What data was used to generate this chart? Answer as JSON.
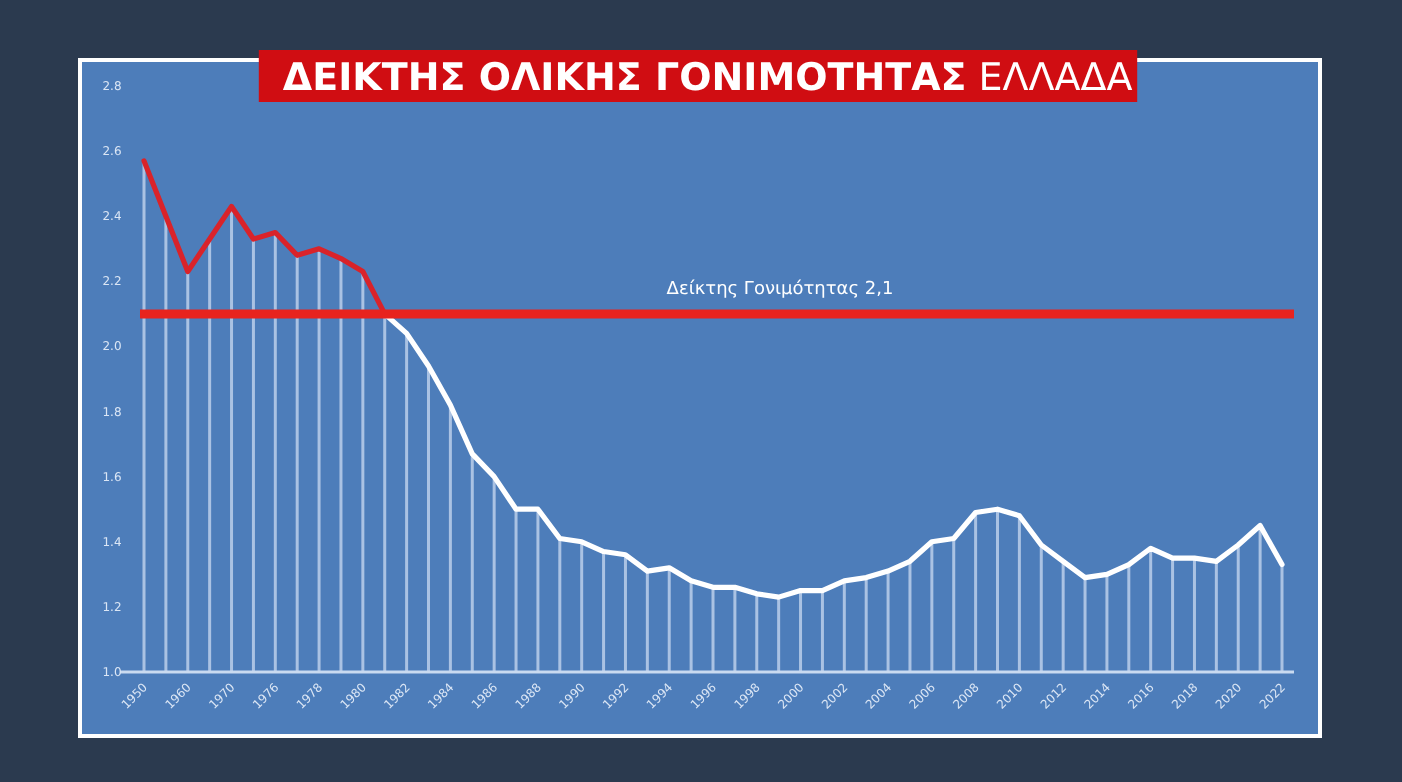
{
  "chart_data": {
    "type": "line",
    "title": "ΔΕΙΚΤΗΣ ΟΛΙΚΗΣ ΓΟΝΙΜΟΤΗΤΑΣ",
    "subtitle": "ΕΛΛΑΔΑ",
    "categories": [
      "1950",
      null,
      "1960",
      null,
      "1970",
      null,
      "1976",
      null,
      "1978",
      null,
      "1980",
      null,
      "1982",
      null,
      "1984",
      null,
      "1986",
      null,
      "1988",
      null,
      "1990",
      null,
      "1992",
      null,
      "1994",
      null,
      "1996",
      null,
      "1998",
      null,
      "2000",
      null,
      "2002",
      null,
      "2004",
      null,
      "2006",
      null,
      "2008",
      null,
      "2010",
      null,
      "2012",
      null,
      "2014",
      null,
      "2016",
      null,
      "2018",
      null,
      "2020",
      null,
      "2022"
    ],
    "series": [
      {
        "type": "bar",
        "color": "#c9daf0",
        "values": [
          2.57,
          2.4,
          2.23,
          2.33,
          2.43,
          2.33,
          2.35,
          2.28,
          2.3,
          2.27,
          2.23,
          2.1,
          2.04,
          1.94,
          1.82,
          1.67,
          1.6,
          1.5,
          1.5,
          1.41,
          1.4,
          1.37,
          1.36,
          1.31,
          1.32,
          1.28,
          1.26,
          1.26,
          1.24,
          1.23,
          1.25,
          1.25,
          1.28,
          1.29,
          1.31,
          1.34,
          1.4,
          1.41,
          1.49,
          1.5,
          1.48,
          1.39,
          1.34,
          1.29,
          1.3,
          1.33,
          1.38,
          1.35,
          1.35,
          1.34,
          1.39,
          1.45,
          1.33
        ]
      },
      {
        "color": "#d9232a",
        "values": [
          2.57,
          2.4,
          2.23,
          2.33,
          2.43,
          2.33,
          2.35,
          2.28,
          2.3,
          2.27,
          2.23,
          2.1,
          null,
          null,
          null,
          null,
          null,
          null,
          null,
          null,
          null,
          null,
          null,
          null,
          null,
          null,
          null,
          null,
          null,
          null,
          null,
          null,
          null,
          null,
          null,
          null,
          null,
          null,
          null,
          null,
          null,
          null,
          null,
          null,
          null,
          null,
          null,
          null,
          null,
          null,
          null,
          null,
          null
        ]
      },
      {
        "color": "#ffffff",
        "values": [
          null,
          null,
          null,
          null,
          null,
          null,
          null,
          null,
          null,
          null,
          null,
          2.1,
          2.04,
          1.94,
          1.82,
          1.67,
          1.6,
          1.5,
          1.5,
          1.41,
          1.4,
          1.37,
          1.36,
          1.31,
          1.32,
          1.28,
          1.26,
          1.26,
          1.24,
          1.23,
          1.25,
          1.25,
          1.28,
          1.29,
          1.31,
          1.34,
          1.4,
          1.41,
          1.49,
          1.5,
          1.48,
          1.39,
          1.34,
          1.29,
          1.3,
          1.33,
          1.38,
          1.35,
          1.35,
          1.34,
          1.39,
          1.45,
          1.33
        ]
      }
    ],
    "ylim": [
      1.0,
      2.8
    ],
    "yticks": [
      {
        "value": 1.0,
        "label": "1.0"
      },
      {
        "value": 1.2,
        "label": "1.2"
      },
      {
        "value": 1.4,
        "label": "1.4"
      },
      {
        "value": 1.6,
        "label": "1.6"
      },
      {
        "value": 1.8,
        "label": "1.8"
      },
      {
        "value": 2.0,
        "label": "2.0"
      },
      {
        "value": 2.2,
        "label": "2.2"
      },
      {
        "value": 2.4,
        "label": "2.4"
      },
      {
        "value": 2.6,
        "label": "2.6"
      },
      {
        "value": 2.8,
        "label": "2.8"
      }
    ],
    "ref_lines": [
      {
        "axis": "y",
        "value": 2.1,
        "label": "Δείκτης Γονιμότητας 2,1",
        "color": "#e8231e"
      }
    ],
    "grid": false,
    "marker": "none",
    "line_style": "solid"
  }
}
